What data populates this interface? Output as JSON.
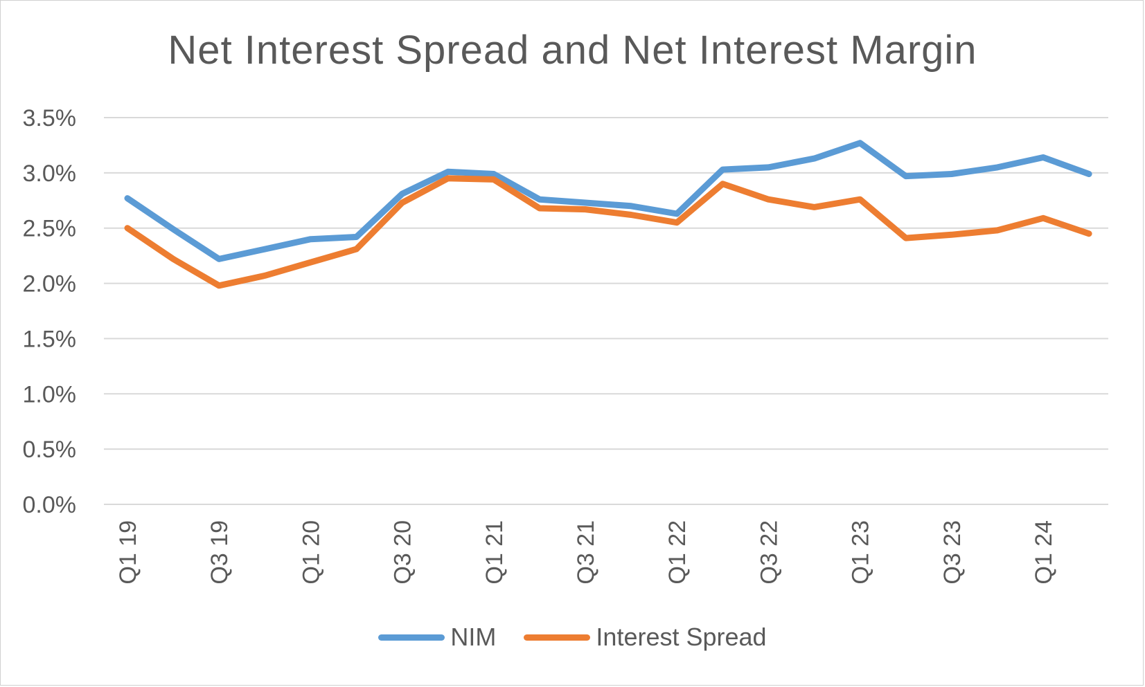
{
  "chart_data": {
    "type": "line",
    "title": "Net Interest Spread and Net Interest Margin",
    "xlabel": "",
    "ylabel": "",
    "ylim": [
      0,
      3.5
    ],
    "y_ticks": [
      "0.0%",
      "0.5%",
      "1.0%",
      "1.5%",
      "2.0%",
      "2.5%",
      "3.0%",
      "3.5%"
    ],
    "y_tick_values": [
      0,
      0.5,
      1.0,
      1.5,
      2.0,
      2.5,
      3.0,
      3.5
    ],
    "grid": true,
    "legend_position": "bottom",
    "categories": [
      "Q1 19",
      "Q2 19",
      "Q3 19",
      "Q4 19",
      "Q1 20",
      "Q2 20",
      "Q3 20",
      "Q4 20",
      "Q1 21",
      "Q2 21",
      "Q3 21",
      "Q4 21",
      "Q1 22",
      "Q2 22",
      "Q3 22",
      "Q4 22",
      "Q1 23",
      "Q2 23",
      "Q3 23",
      "Q4 23",
      "Q1 24",
      "Q2 24"
    ],
    "x_tick_labels": [
      "Q1 19",
      "",
      "Q3 19",
      "",
      "Q1 20",
      "",
      "Q3 20",
      "",
      "Q1 21",
      "",
      "Q3 21",
      "",
      "Q1 22",
      "",
      "Q3 22",
      "",
      "Q1 23",
      "",
      "Q3 23",
      "",
      "Q1 24",
      ""
    ],
    "series": [
      {
        "name": "NIM",
        "color": "#5B9BD5",
        "values": [
          2.77,
          2.49,
          2.22,
          2.31,
          2.4,
          2.42,
          2.81,
          3.01,
          2.99,
          2.76,
          2.73,
          2.7,
          2.63,
          3.03,
          3.05,
          3.13,
          3.27,
          2.97,
          2.99,
          3.05,
          3.14,
          2.99
        ]
      },
      {
        "name": "Interest Spread",
        "color": "#ED7D31",
        "values": [
          2.5,
          2.22,
          1.98,
          2.07,
          2.19,
          2.31,
          2.73,
          2.95,
          2.94,
          2.68,
          2.67,
          2.62,
          2.55,
          2.9,
          2.76,
          2.69,
          2.76,
          2.41,
          2.44,
          2.48,
          2.59,
          2.45
        ]
      }
    ]
  },
  "colors": {
    "gridline": "#d9d9d9",
    "text": "#595959"
  }
}
